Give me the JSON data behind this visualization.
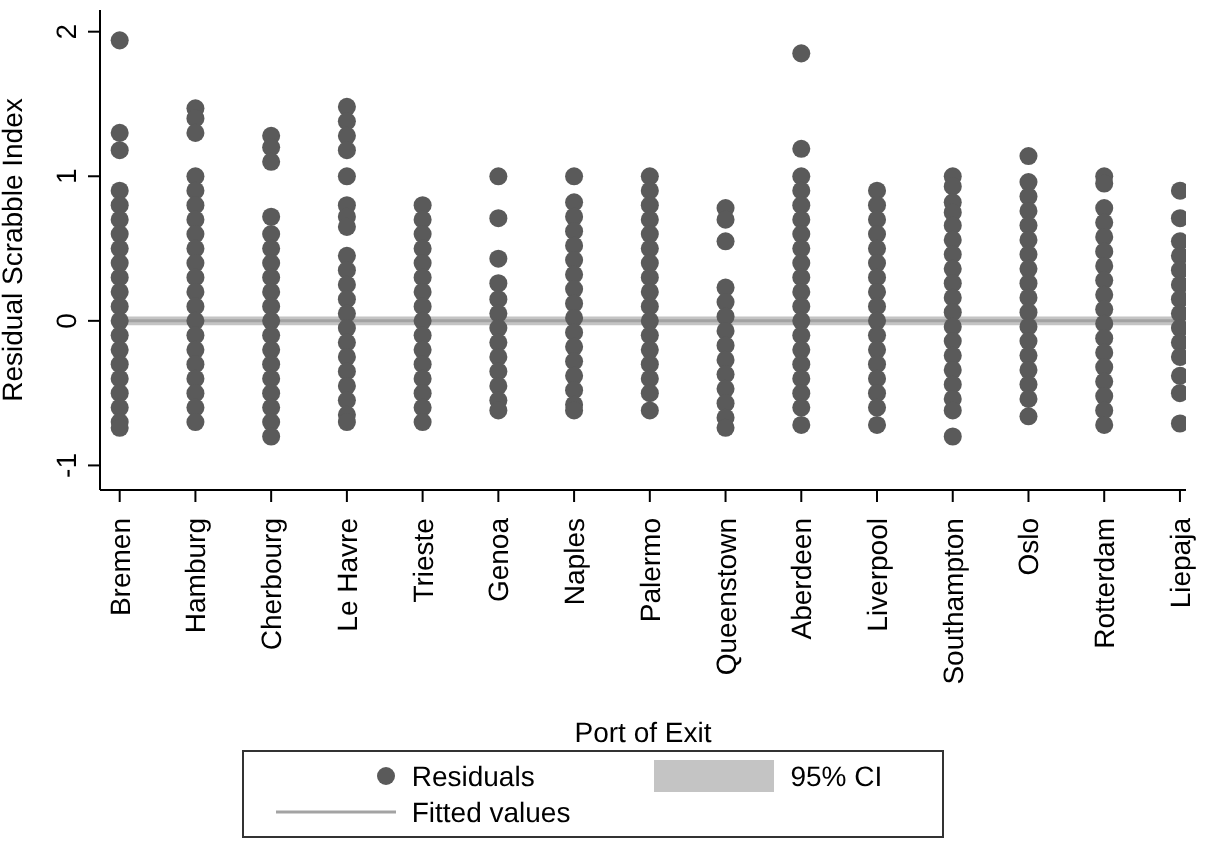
{
  "chart_data": {
    "type": "scatter",
    "xlabel": "Port of Exit",
    "ylabel": "Residual Scrabble Index",
    "categories": [
      "Bremen",
      "Hamburg",
      "Cherbourg",
      "Le Havre",
      "Trieste",
      "Genoa",
      "Naples",
      "Palermo",
      "Queenstown",
      "Aberdeen",
      "Liverpool",
      "Southampton",
      "Oslo",
      "Rotterdam",
      "Liepaja"
    ],
    "ylim": [
      -1.17,
      2.15
    ],
    "yticks": [
      -1,
      0,
      1,
      2
    ],
    "legend": "bottom",
    "bands": [
      {
        "axis": "y",
        "from": -0.03,
        "to": 0.03,
        "label": "95% CI",
        "color": "#c4c4c4"
      }
    ],
    "series": [
      {
        "name": "Residuals",
        "marker": "circle",
        "color": "#5a5a5a",
        "x": [
          "Bremen",
          "Bremen",
          "Bremen",
          "Bremen",
          "Bremen",
          "Bremen",
          "Bremen",
          "Bremen",
          "Bremen",
          "Bremen",
          "Bremen",
          "Bremen",
          "Bremen",
          "Bremen",
          "Bremen",
          "Bremen",
          "Bremen",
          "Bremen",
          "Bremen",
          "Bremen",
          "Bremen",
          "Hamburg",
          "Hamburg",
          "Hamburg",
          "Hamburg",
          "Hamburg",
          "Hamburg",
          "Hamburg",
          "Hamburg",
          "Hamburg",
          "Hamburg",
          "Hamburg",
          "Hamburg",
          "Hamburg",
          "Hamburg",
          "Hamburg",
          "Hamburg",
          "Hamburg",
          "Hamburg",
          "Hamburg",
          "Hamburg",
          "Hamburg",
          "Cherbourg",
          "Cherbourg",
          "Cherbourg",
          "Cherbourg",
          "Cherbourg",
          "Cherbourg",
          "Cherbourg",
          "Cherbourg",
          "Cherbourg",
          "Cherbourg",
          "Cherbourg",
          "Cherbourg",
          "Cherbourg",
          "Cherbourg",
          "Cherbourg",
          "Cherbourg",
          "Cherbourg",
          "Cherbourg",
          "Cherbourg",
          "Le Havre",
          "Le Havre",
          "Le Havre",
          "Le Havre",
          "Le Havre",
          "Le Havre",
          "Le Havre",
          "Le Havre",
          "Le Havre",
          "Le Havre",
          "Le Havre",
          "Le Havre",
          "Le Havre",
          "Le Havre",
          "Le Havre",
          "Le Havre",
          "Le Havre",
          "Le Havre",
          "Le Havre",
          "Le Havre",
          "Le Havre",
          "Trieste",
          "Trieste",
          "Trieste",
          "Trieste",
          "Trieste",
          "Trieste",
          "Trieste",
          "Trieste",
          "Trieste",
          "Trieste",
          "Trieste",
          "Trieste",
          "Trieste",
          "Trieste",
          "Trieste",
          "Trieste",
          "Genoa",
          "Genoa",
          "Genoa",
          "Genoa",
          "Genoa",
          "Genoa",
          "Genoa",
          "Genoa",
          "Genoa",
          "Genoa",
          "Genoa",
          "Genoa",
          "Genoa",
          "Naples",
          "Naples",
          "Naples",
          "Naples",
          "Naples",
          "Naples",
          "Naples",
          "Naples",
          "Naples",
          "Naples",
          "Naples",
          "Naples",
          "Naples",
          "Naples",
          "Naples",
          "Naples",
          "Naples",
          "Palermo",
          "Palermo",
          "Palermo",
          "Palermo",
          "Palermo",
          "Palermo",
          "Palermo",
          "Palermo",
          "Palermo",
          "Palermo",
          "Palermo",
          "Palermo",
          "Palermo",
          "Palermo",
          "Palermo",
          "Palermo",
          "Palermo",
          "Queenstown",
          "Queenstown",
          "Queenstown",
          "Queenstown",
          "Queenstown",
          "Queenstown",
          "Queenstown",
          "Queenstown",
          "Queenstown",
          "Queenstown",
          "Queenstown",
          "Queenstown",
          "Queenstown",
          "Queenstown",
          "Aberdeen",
          "Aberdeen",
          "Aberdeen",
          "Aberdeen",
          "Aberdeen",
          "Aberdeen",
          "Aberdeen",
          "Aberdeen",
          "Aberdeen",
          "Aberdeen",
          "Aberdeen",
          "Aberdeen",
          "Aberdeen",
          "Aberdeen",
          "Aberdeen",
          "Aberdeen",
          "Aberdeen",
          "Aberdeen",
          "Aberdeen",
          "Aberdeen",
          "Liverpool",
          "Liverpool",
          "Liverpool",
          "Liverpool",
          "Liverpool",
          "Liverpool",
          "Liverpool",
          "Liverpool",
          "Liverpool",
          "Liverpool",
          "Liverpool",
          "Liverpool",
          "Liverpool",
          "Liverpool",
          "Liverpool",
          "Liverpool",
          "Liverpool",
          "Southampton",
          "Southampton",
          "Southampton",
          "Southampton",
          "Southampton",
          "Southampton",
          "Southampton",
          "Southampton",
          "Southampton",
          "Southampton",
          "Southampton",
          "Southampton",
          "Southampton",
          "Southampton",
          "Southampton",
          "Southampton",
          "Southampton",
          "Southampton",
          "Southampton",
          "Oslo",
          "Oslo",
          "Oslo",
          "Oslo",
          "Oslo",
          "Oslo",
          "Oslo",
          "Oslo",
          "Oslo",
          "Oslo",
          "Oslo",
          "Oslo",
          "Oslo",
          "Oslo",
          "Oslo",
          "Oslo",
          "Oslo",
          "Oslo",
          "Rotterdam",
          "Rotterdam",
          "Rotterdam",
          "Rotterdam",
          "Rotterdam",
          "Rotterdam",
          "Rotterdam",
          "Rotterdam",
          "Rotterdam",
          "Rotterdam",
          "Rotterdam",
          "Rotterdam",
          "Rotterdam",
          "Rotterdam",
          "Rotterdam",
          "Rotterdam",
          "Rotterdam",
          "Rotterdam",
          "Liepaja",
          "Liepaja",
          "Liepaja",
          "Liepaja",
          "Liepaja",
          "Liepaja",
          "Liepaja",
          "Liepaja",
          "Liepaja",
          "Liepaja",
          "Liepaja",
          "Liepaja",
          "Liepaja",
          "Liepaja"
        ],
        "values": [
          1.94,
          1.3,
          1.18,
          0.9,
          0.8,
          0.7,
          0.6,
          0.5,
          0.4,
          0.3,
          0.2,
          0.1,
          0,
          -0.1,
          -0.2,
          -0.3,
          -0.4,
          -0.5,
          -0.6,
          -0.7,
          -0.74,
          1.47,
          1.4,
          1.3,
          1,
          0.9,
          0.8,
          0.7,
          0.6,
          0.5,
          0.4,
          0.3,
          0.2,
          0.1,
          0,
          -0.1,
          -0.2,
          -0.3,
          -0.4,
          -0.5,
          -0.6,
          -0.7,
          1.28,
          1.2,
          1.1,
          0.72,
          0.6,
          0.5,
          0.4,
          0.3,
          0.2,
          0.1,
          0,
          -0.1,
          -0.2,
          -0.3,
          -0.4,
          -0.5,
          -0.6,
          -0.7,
          -0.8,
          1.48,
          1.38,
          1.28,
          1.18,
          1,
          0.8,
          0.72,
          0.65,
          0.45,
          0.35,
          0.25,
          0.15,
          0.05,
          -0.05,
          -0.15,
          -0.25,
          -0.35,
          -0.45,
          -0.55,
          -0.65,
          -0.7,
          0.8,
          0.7,
          0.6,
          0.5,
          0.4,
          0.3,
          0.2,
          0.1,
          0,
          -0.1,
          -0.2,
          -0.3,
          -0.4,
          -0.5,
          -0.6,
          -0.7,
          1,
          0.71,
          0.43,
          0.26,
          0.15,
          0.05,
          -0.05,
          -0.15,
          -0.25,
          -0.35,
          -0.45,
          -0.55,
          -0.62,
          1,
          0.82,
          0.72,
          0.62,
          0.52,
          0.42,
          0.32,
          0.22,
          0.12,
          0.02,
          -0.08,
          -0.18,
          -0.28,
          -0.38,
          -0.48,
          -0.58,
          -0.62,
          1,
          0.9,
          0.8,
          0.7,
          0.6,
          0.5,
          0.4,
          0.3,
          0.2,
          0.1,
          0,
          -0.1,
          -0.2,
          -0.3,
          -0.4,
          -0.5,
          -0.62,
          0.78,
          0.7,
          0.55,
          0.23,
          0.13,
          0.03,
          -0.07,
          -0.17,
          -0.27,
          -0.37,
          -0.47,
          -0.57,
          -0.67,
          -0.74,
          1.85,
          1.19,
          1,
          0.9,
          0.8,
          0.7,
          0.6,
          0.5,
          0.4,
          0.3,
          0.2,
          0.1,
          0,
          -0.1,
          -0.2,
          -0.3,
          -0.4,
          -0.5,
          -0.6,
          -0.72,
          0.9,
          0.8,
          0.7,
          0.6,
          0.5,
          0.4,
          0.3,
          0.2,
          0.1,
          0,
          -0.1,
          -0.2,
          -0.3,
          -0.4,
          -0.5,
          -0.6,
          -0.72,
          1,
          0.93,
          0.82,
          0.75,
          0.66,
          0.56,
          0.46,
          0.36,
          0.26,
          0.16,
          0.06,
          -0.04,
          -0.14,
          -0.24,
          -0.34,
          -0.44,
          -0.54,
          -0.62,
          -0.8,
          1.14,
          0.96,
          0.86,
          0.76,
          0.66,
          0.56,
          0.46,
          0.36,
          0.26,
          0.16,
          0.06,
          -0.04,
          -0.14,
          -0.24,
          -0.34,
          -0.44,
          -0.54,
          -0.66,
          1,
          0.95,
          0.78,
          0.68,
          0.58,
          0.48,
          0.38,
          0.28,
          0.18,
          0.08,
          -0.02,
          -0.12,
          -0.22,
          -0.32,
          -0.42,
          -0.52,
          -0.62,
          -0.72,
          0.9,
          0.71,
          0.55,
          0.45,
          0.35,
          0.25,
          0.15,
          0.05,
          -0.05,
          -0.15,
          -0.25,
          -0.38,
          -0.5,
          -0.71
        ]
      },
      {
        "name": "Fitted values",
        "type": "line",
        "marker": "none",
        "color": "#a3a3a3",
        "values": [
          0,
          0,
          0,
          0,
          0,
          0,
          0,
          0,
          0,
          0,
          0,
          0,
          0,
          0,
          0
        ]
      }
    ]
  }
}
